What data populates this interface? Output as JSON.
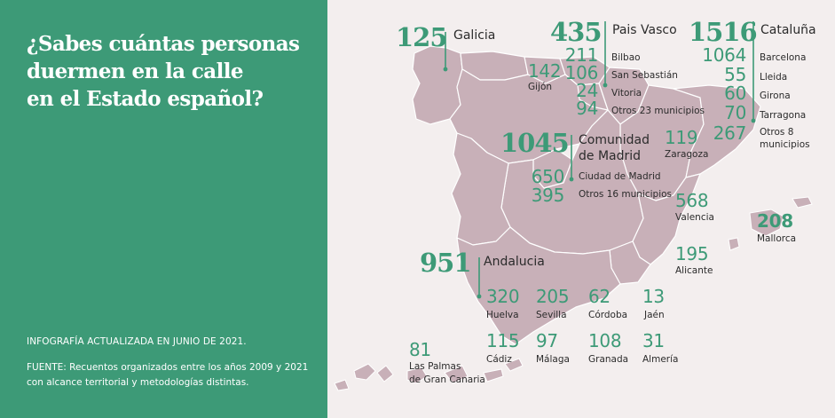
{
  "headline": [
    "¿Sabes cuántas personas",
    "duermen en la calle",
    "en el Estado español?"
  ],
  "footer": {
    "updated": "INFOGRAFÍA ACTUALIZADA EN JUNIO DE 2021.",
    "source": [
      "FUENTE: Recuentos organizados entre los años 2009 y 2021",
      "con alcance territorial y metodologías distintas."
    ]
  },
  "colors": {
    "green": "#3d9a77",
    "map_fill": "#c8b0b8",
    "map_stroke": "#ffffff",
    "background": "#f3eeee"
  },
  "regions": {
    "galicia": {
      "value": "125",
      "name": "Galicia"
    },
    "pais_vasco": {
      "value": "435",
      "name": "Pais Vasco",
      "cities": [
        {
          "value": "211",
          "name": "Bilbao"
        },
        {
          "value": "106",
          "name": "San Sebastián"
        },
        {
          "value": "24",
          "name": "Vitoria"
        },
        {
          "value": "94",
          "name": "Otros 23 municipios"
        }
      ]
    },
    "cataluna": {
      "value": "1516",
      "name": "Cataluña",
      "cities": [
        {
          "value": "1064",
          "name": "Barcelona"
        },
        {
          "value": "55",
          "name": "Lleida"
        },
        {
          "value": "60",
          "name": "Girona"
        },
        {
          "value": "70",
          "name": "Tarragona"
        },
        {
          "value": "267",
          "name": "Otros 8",
          "name2": "municipios"
        }
      ]
    },
    "madrid": {
      "value": "1045",
      "name": "Comunidad",
      "name2": "de Madrid",
      "cities": [
        {
          "value": "650",
          "name": "Ciudad de Madrid"
        },
        {
          "value": "395",
          "name": "Otros 16 municipios"
        }
      ]
    },
    "andalucia": {
      "value": "951",
      "name": "Andalucia",
      "cities": [
        {
          "value": "320",
          "name": "Huelva"
        },
        {
          "value": "205",
          "name": "Sevilla"
        },
        {
          "value": "62",
          "name": "Córdoba"
        },
        {
          "value": "13",
          "name": "Jaén"
        },
        {
          "value": "115",
          "name": "Cádiz"
        },
        {
          "value": "97",
          "name": "Málaga"
        },
        {
          "value": "108",
          "name": "Granada"
        },
        {
          "value": "31",
          "name": "Almería"
        }
      ]
    },
    "mallorca": {
      "value": "208",
      "name": "Mallorca"
    }
  },
  "cities": {
    "gijon": {
      "value": "142",
      "name": "Gijón"
    },
    "zaragoza": {
      "value": "119",
      "name": "Zaragoza"
    },
    "valencia": {
      "value": "568",
      "name": "Valencia"
    },
    "alicante": {
      "value": "195",
      "name": "Alicante"
    },
    "las_palmas": {
      "value": "81",
      "name": "Las Palmas",
      "name2": "de Gran Canaria"
    }
  }
}
